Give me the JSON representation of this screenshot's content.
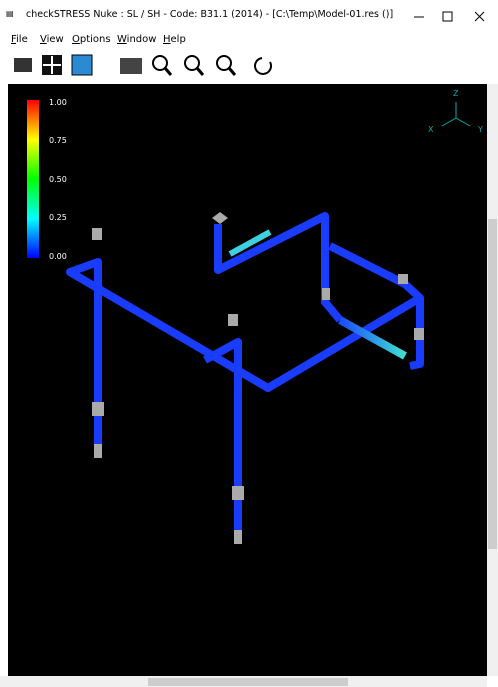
{
  "window": {
    "title": "checkSTRESS Nuke : SL / SH - Code: B31.1 (2014) -  [C:\\Temp\\Model-01.res ()]"
  },
  "menu": [
    "File",
    "View",
    "Options",
    "Window",
    "Help"
  ],
  "legend": {
    "labels": [
      "1.00",
      "0.75",
      "0.50",
      "0.25",
      "0.00"
    ]
  },
  "axes": {
    "z": "Z",
    "x": "X",
    "y": "Y"
  }
}
